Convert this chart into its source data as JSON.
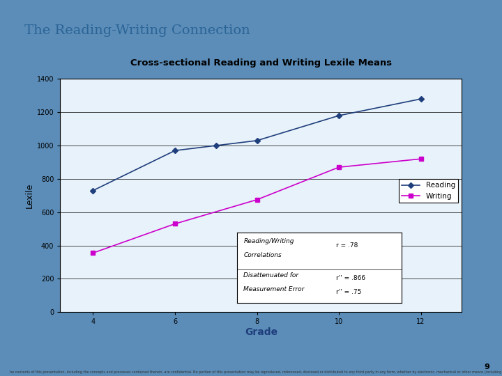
{
  "title_slide": "The Reading-Writing Connection",
  "chart_title": "Cross-sectional Reading and Writing Lexile Means",
  "xlabel": "Grade",
  "ylabel": "Lexile",
  "grades": [
    4,
    6,
    7,
    8,
    10,
    12
  ],
  "reading_values": [
    730,
    970,
    1000,
    1030,
    1180,
    1280
  ],
  "writing_values": [
    355,
    530,
    null,
    675,
    870,
    920
  ],
  "reading_color": "#1F3E7C",
  "writing_color": "#CC00CC",
  "ylim": [
    0,
    1400
  ],
  "yticks": [
    0,
    200,
    400,
    600,
    800,
    1000,
    1200,
    1400
  ],
  "xticks": [
    4,
    6,
    8,
    10,
    12
  ],
  "outer_bg": "#5B8DB8",
  "slide_bg": "#DCE9F5",
  "chart_bg": "#E8F2FA",
  "title_color": "#2B6496",
  "chart_title_color": "#000000",
  "grade_label_color": "#1F3E7C",
  "annotation_text1a": "Reading/Writing",
  "annotation_text1b": "Correlations",
  "annotation_val1": "r = .78",
  "annotation_text2a": "Disattenuated for",
  "annotation_text2b": "Measurement Error",
  "annotation_val2a": "r'' = .866",
  "annotation_val2b": "r'' = .75",
  "legend_reading": "Reading",
  "legend_writing": "Writing",
  "footer_text": "he contents of this presentation, including the concepts and processes contained therein, are confidential. No portion of this presentation may be reproduced, referenced, disclosed or distributed to any third party in any form, whether by electronic, mechanical or other means (including photocopying, recording or information storage and retrieval), without the express written permission of MetaMetrics, Inc. Copyright © 2010 MetaMetrics, Inc. All rights reserved.",
  "page_number": "9"
}
